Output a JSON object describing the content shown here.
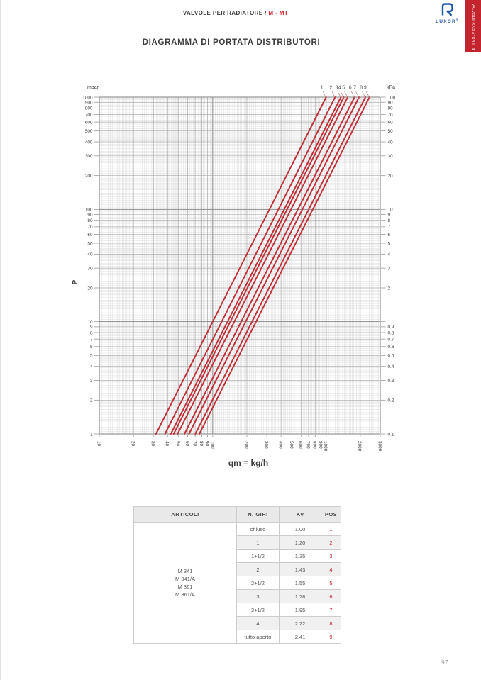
{
  "page": {
    "number": "97"
  },
  "header": {
    "breadcrumb": "VALVOLE PER RADIATORE / ",
    "breadcrumb_highlight": "M - MT",
    "title": "DIAGRAMMA DI PORTATA DISTRIBUTORI"
  },
  "brand": {
    "logo_text": "LUXOR",
    "logo_reg": "®",
    "sidebar_tab": {
      "number": "1",
      "label": "VALVOLE RADIATORE"
    }
  },
  "colors": {
    "accent_red": "#c3242e",
    "line_red": "#c23038",
    "brand_blue": "#2057a7",
    "grid_minor": "#dcdcdc",
    "grid_major": "#a8a8a8",
    "grid_decade": "#8a8a8a",
    "tick_text": "#3d3d3d"
  },
  "chart_data": {
    "type": "line",
    "title": "DIAGRAMMA DI PORTATA DISTRIBUTORI",
    "grid": "log-log",
    "x_axis": {
      "label": "qm = kg/h",
      "scale": "log",
      "range": [
        10,
        3000
      ],
      "ticks": [
        10,
        20,
        30,
        40,
        50,
        60,
        70,
        80,
        90,
        100,
        200,
        300,
        400,
        500,
        600,
        700,
        800,
        900,
        1000,
        2000,
        3000
      ]
    },
    "y_axis_left": {
      "label": "mbar",
      "axis_title": "P",
      "scale": "log",
      "range": [
        1,
        1000
      ],
      "ticks": [
        1000,
        900,
        800,
        700,
        600,
        500,
        400,
        300,
        200,
        100,
        90,
        80,
        70,
        60,
        50,
        40,
        30,
        20,
        10,
        9,
        8,
        7,
        6,
        5,
        4,
        3,
        2,
        1
      ]
    },
    "y_axis_right": {
      "label": "kPa",
      "scale": "log",
      "range": [
        0.1,
        100
      ],
      "ticks": [
        "100",
        "90",
        "80",
        "70",
        "60",
        "50",
        "40",
        "30",
        "20",
        "10",
        "9",
        "8",
        "7",
        "6",
        "5",
        "4",
        "3",
        "2",
        "1",
        "0.9",
        "0.8",
        "0.7",
        "0.6",
        "0.5",
        "0.4",
        "0.3",
        "0.2",
        "0.1"
      ]
    },
    "series": [
      {
        "pos": "1",
        "kv": 1.0,
        "points": [
          {
            "qm": 31.6,
            "dp_mbar": 1
          },
          {
            "qm": 1000,
            "dp_mbar": 1000
          }
        ]
      },
      {
        "pos": "2",
        "kv": 1.2,
        "points": [
          {
            "qm": 37.9,
            "dp_mbar": 1
          },
          {
            "qm": 1200,
            "dp_mbar": 1000
          }
        ]
      },
      {
        "pos": "3",
        "kv": 1.35,
        "points": [
          {
            "qm": 42.7,
            "dp_mbar": 1
          },
          {
            "qm": 1350,
            "dp_mbar": 1000
          }
        ]
      },
      {
        "pos": "4",
        "kv": 1.43,
        "points": [
          {
            "qm": 45.2,
            "dp_mbar": 1
          },
          {
            "qm": 1430,
            "dp_mbar": 1000
          }
        ]
      },
      {
        "pos": "5",
        "kv": 1.55,
        "points": [
          {
            "qm": 49.0,
            "dp_mbar": 1
          },
          {
            "qm": 1550,
            "dp_mbar": 1000
          }
        ]
      },
      {
        "pos": "6",
        "kv": 1.78,
        "points": [
          {
            "qm": 56.3,
            "dp_mbar": 1
          },
          {
            "qm": 1780,
            "dp_mbar": 1000
          }
        ]
      },
      {
        "pos": "7",
        "kv": 1.95,
        "points": [
          {
            "qm": 61.7,
            "dp_mbar": 1
          },
          {
            "qm": 1950,
            "dp_mbar": 1000
          }
        ]
      },
      {
        "pos": "8",
        "kv": 2.22,
        "points": [
          {
            "qm": 70.2,
            "dp_mbar": 1
          },
          {
            "qm": 2220,
            "dp_mbar": 1000
          }
        ]
      },
      {
        "pos": "9",
        "kv": 2.41,
        "points": [
          {
            "qm": 76.2,
            "dp_mbar": 1
          },
          {
            "qm": 2410,
            "dp_mbar": 1000
          }
        ]
      }
    ]
  },
  "table": {
    "headers": [
      "ARTICOLI",
      "N. GIRI",
      "Kv",
      "POS"
    ],
    "articoli": [
      "M 341",
      "M 341/A",
      "M 361",
      "M 361/A"
    ],
    "rows": [
      {
        "n_giri": "chiuso",
        "kv": "1.00",
        "pos": "1"
      },
      {
        "n_giri": "1",
        "kv": "1.20",
        "pos": "2"
      },
      {
        "n_giri": "1+1/2",
        "kv": "1.35",
        "pos": "3"
      },
      {
        "n_giri": "2",
        "kv": "1.43",
        "pos": "4"
      },
      {
        "n_giri": "2+1/2",
        "kv": "1.55",
        "pos": "5"
      },
      {
        "n_giri": "3",
        "kv": "1.78",
        "pos": "6"
      },
      {
        "n_giri": "3+1/2",
        "kv": "1.95",
        "pos": "7"
      },
      {
        "n_giri": "4",
        "kv": "2.22",
        "pos": "8"
      },
      {
        "n_giri": "tutto aperto",
        "kv": "2.41",
        "pos": "9"
      }
    ]
  }
}
